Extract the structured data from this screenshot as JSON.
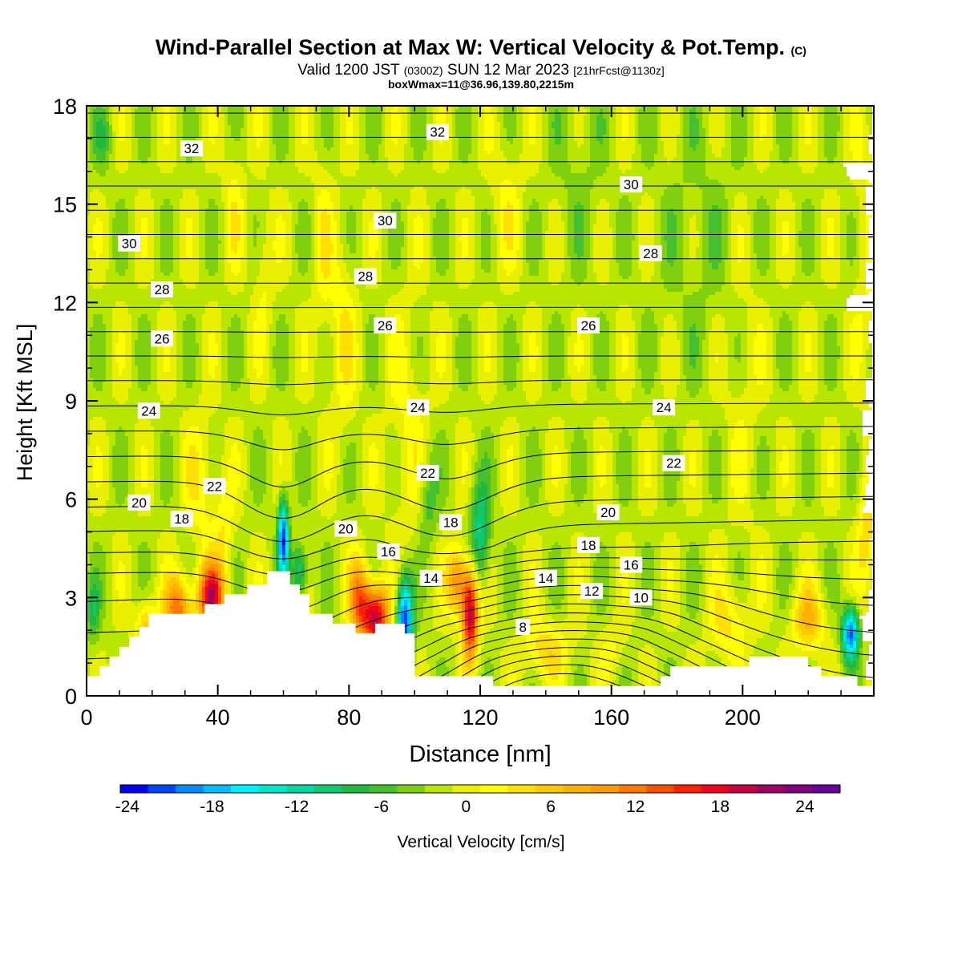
{
  "title": {
    "main": "Wind-Parallel Section at Max W: Vertical Velocity & Pot.Temp.",
    "copyright": "(C)",
    "valid_prefix": "Valid 1200 JST",
    "valid_utc": "(0300Z)",
    "valid_date": "SUN 12 Mar 2023",
    "forecast": "[21hrFcst@1130z]",
    "box_info": "boxWmax=11@36.96,139.80,2215m"
  },
  "chart_data": {
    "type": "contour",
    "xlabel": "Distance [nm]",
    "ylabel": "Height [Kft MSL]",
    "xlim": [
      0,
      240
    ],
    "ylim": [
      0,
      18
    ],
    "x_ticks": [
      "0",
      "40",
      "80",
      "120",
      "160",
      "200"
    ],
    "y_ticks": [
      "0",
      "3",
      "6",
      "9",
      "12",
      "15",
      "18"
    ],
    "colorbar": {
      "label": "Vertical Velocity [cm/s]",
      "ticks": [
        "-24",
        "-18",
        "-12",
        "-6",
        "0",
        "6",
        "12",
        "18",
        "24"
      ],
      "range": [
        -25,
        26
      ],
      "colors": [
        "#0000ee",
        "#0044ff",
        "#0088ff",
        "#00bbff",
        "#00eeff",
        "#00e6c8",
        "#00d6a0",
        "#10c870",
        "#22b840",
        "#44c030",
        "#80d010",
        "#b8e600",
        "#e8f000",
        "#ffff00",
        "#ffe000",
        "#ffc800",
        "#ffb000",
        "#ff9a00",
        "#ff7a00",
        "#ff5000",
        "#ff2000",
        "#ee0020",
        "#c80040",
        "#a00060",
        "#800080",
        "#660099"
      ]
    },
    "theta_contour_labels": [
      {
        "value": "32",
        "x": 32,
        "y": 16.7
      },
      {
        "value": "32",
        "x": 107,
        "y": 17.2
      },
      {
        "value": "30",
        "x": 13,
        "y": 13.8
      },
      {
        "value": "30",
        "x": 91,
        "y": 14.5
      },
      {
        "value": "30",
        "x": 166,
        "y": 15.6
      },
      {
        "value": "28",
        "x": 23,
        "y": 12.4
      },
      {
        "value": "28",
        "x": 85,
        "y": 12.8
      },
      {
        "value": "28",
        "x": 172,
        "y": 13.5
      },
      {
        "value": "26",
        "x": 23,
        "y": 10.9
      },
      {
        "value": "26",
        "x": 91,
        "y": 11.3
      },
      {
        "value": "26",
        "x": 153,
        "y": 11.3
      },
      {
        "value": "24",
        "x": 19,
        "y": 8.7
      },
      {
        "value": "24",
        "x": 101,
        "y": 8.8
      },
      {
        "value": "24",
        "x": 176,
        "y": 8.8
      },
      {
        "value": "22",
        "x": 39,
        "y": 6.4
      },
      {
        "value": "22",
        "x": 104,
        "y": 6.8
      },
      {
        "value": "22",
        "x": 179,
        "y": 7.1
      },
      {
        "value": "20",
        "x": 16,
        "y": 5.9
      },
      {
        "value": "20",
        "x": 79,
        "y": 5.1
      },
      {
        "value": "20",
        "x": 159,
        "y": 5.6
      },
      {
        "value": "18",
        "x": 29,
        "y": 5.4
      },
      {
        "value": "18",
        "x": 111,
        "y": 5.3
      },
      {
        "value": "18",
        "x": 153,
        "y": 4.6
      },
      {
        "value": "16",
        "x": 92,
        "y": 4.4
      },
      {
        "value": "16",
        "x": 166,
        "y": 4.0
      },
      {
        "value": "14",
        "x": 105,
        "y": 3.6
      },
      {
        "value": "14",
        "x": 140,
        "y": 3.6
      },
      {
        "value": "12",
        "x": 154,
        "y": 3.2
      },
      {
        "value": "10",
        "x": 169,
        "y": 3.0
      },
      {
        "value": "8",
        "x": 133,
        "y": 2.1
      }
    ]
  },
  "colors": {
    "positive": "#ff2000",
    "negative": "#0088ff",
    "terrain": "#ffffff"
  }
}
